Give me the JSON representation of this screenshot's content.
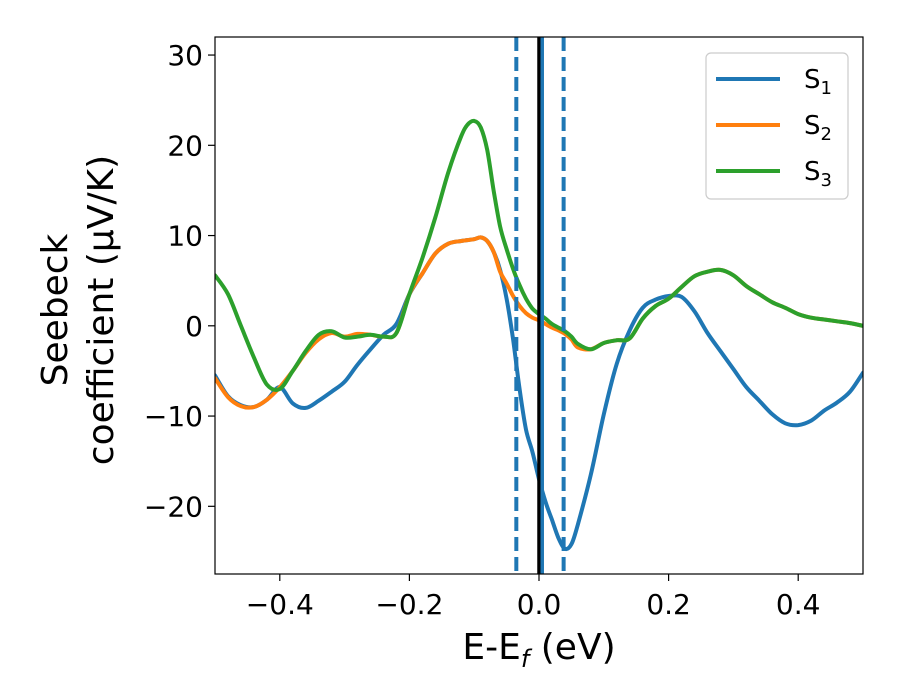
{
  "chart_data": {
    "type": "line",
    "xlabel": "E-E_f (eV)",
    "ylabel_line1": "Seebeck",
    "ylabel_line2": "coefficient  (μV/K)",
    "xlim": [
      -0.5,
      0.5
    ],
    "ylim": [
      -27.5,
      32
    ],
    "xticks": [
      -0.4,
      -0.2,
      0.0,
      0.2,
      0.4
    ],
    "xtick_labels": [
      "−0.4",
      "−0.2",
      "0.0",
      "0.2",
      "0.4"
    ],
    "yticks": [
      -20,
      -10,
      0,
      10,
      20,
      30
    ],
    "ytick_labels": [
      "−20",
      "−10",
      "0",
      "10",
      "20",
      "30"
    ],
    "legend_position": "top-right",
    "vertical_lines": [
      {
        "x": -0.035,
        "style": "dashed",
        "color": "#1f77b4"
      },
      {
        "x": 0.0,
        "style": "solid",
        "color": "#000000"
      },
      {
        "x": 0.005,
        "style": "solid",
        "color": "#1f77b4"
      },
      {
        "x": 0.038,
        "style": "dashed",
        "color": "#1f77b4"
      }
    ],
    "series": [
      {
        "name": "S1",
        "legend_main": "S",
        "legend_sub": "1",
        "color": "#1f77b4",
        "x": [
          -0.5,
          -0.48,
          -0.46,
          -0.44,
          -0.42,
          -0.4,
          -0.38,
          -0.36,
          -0.34,
          -0.32,
          -0.3,
          -0.28,
          -0.26,
          -0.24,
          -0.22,
          -0.2,
          -0.18,
          -0.16,
          -0.14,
          -0.12,
          -0.1,
          -0.09,
          -0.08,
          -0.07,
          -0.06,
          -0.05,
          -0.04,
          -0.03,
          -0.02,
          -0.01,
          0.0,
          0.01,
          0.02,
          0.03,
          0.04,
          0.05,
          0.06,
          0.08,
          0.1,
          0.12,
          0.14,
          0.16,
          0.18,
          0.2,
          0.22,
          0.24,
          0.26,
          0.28,
          0.3,
          0.32,
          0.34,
          0.36,
          0.38,
          0.4,
          0.42,
          0.44,
          0.46,
          0.48,
          0.5
        ],
        "y": [
          -5.5,
          -7.8,
          -8.8,
          -9.0,
          -8.2,
          -6.8,
          -8.6,
          -9.1,
          -8.3,
          -7.3,
          -6.2,
          -4.3,
          -2.6,
          -1.0,
          0.2,
          3.5,
          5.8,
          8.0,
          9.1,
          9.4,
          9.6,
          9.8,
          9.4,
          8.2,
          6.2,
          3.0,
          -1.5,
          -7.0,
          -11.5,
          -14.0,
          -17.0,
          -19.5,
          -21.5,
          -23.5,
          -24.7,
          -24.2,
          -22.0,
          -16.5,
          -9.8,
          -4.2,
          -0.5,
          2.0,
          2.9,
          3.3,
          3.2,
          1.6,
          -0.8,
          -2.8,
          -4.8,
          -6.8,
          -8.3,
          -9.8,
          -10.8,
          -11.0,
          -10.5,
          -9.4,
          -8.5,
          -7.3,
          -5.2
        ]
      },
      {
        "name": "S2",
        "legend_main": "S",
        "legend_sub": "2",
        "color": "#ff7f0e",
        "x": [
          -0.5,
          -0.48,
          -0.46,
          -0.44,
          -0.42,
          -0.4,
          -0.38,
          -0.36,
          -0.34,
          -0.32,
          -0.3,
          -0.28,
          -0.26,
          -0.24,
          -0.22,
          -0.2,
          -0.18,
          -0.16,
          -0.14,
          -0.12,
          -0.1,
          -0.09,
          -0.08,
          -0.07,
          -0.06,
          -0.05,
          -0.04,
          -0.03,
          -0.02,
          -0.01,
          0.0,
          0.01,
          0.02,
          0.03,
          0.04,
          0.05,
          0.06,
          0.08,
          0.1,
          0.12,
          0.14,
          0.16,
          0.18,
          0.2,
          0.22,
          0.24,
          0.26,
          0.28,
          0.3,
          0.32,
          0.34,
          0.36,
          0.38,
          0.4,
          0.42,
          0.44,
          0.46,
          0.48,
          0.5
        ],
        "y": [
          -5.8,
          -7.9,
          -8.9,
          -9.0,
          -8.2,
          -6.8,
          -5.0,
          -3.0,
          -1.5,
          -0.8,
          -1.2,
          -0.9,
          -1.0,
          -1.2,
          -0.8,
          3.5,
          5.8,
          8.0,
          9.1,
          9.4,
          9.6,
          9.8,
          9.4,
          8.2,
          6.0,
          4.7,
          3.3,
          2.2,
          1.4,
          0.9,
          0.6,
          0.2,
          -0.2,
          -0.5,
          -0.9,
          -1.5,
          -2.4,
          -2.6,
          -1.9,
          -1.6,
          -1.4,
          0.8,
          2.2,
          3.0,
          4.3,
          5.5,
          6.0,
          6.2,
          5.6,
          4.4,
          3.5,
          2.6,
          2.0,
          1.3,
          0.9,
          0.7,
          0.5,
          0.3,
          0.0
        ]
      },
      {
        "name": "S3",
        "legend_main": "S",
        "legend_sub": "3",
        "color": "#2ca02c",
        "x": [
          -0.5,
          -0.48,
          -0.46,
          -0.44,
          -0.42,
          -0.4,
          -0.38,
          -0.36,
          -0.34,
          -0.32,
          -0.3,
          -0.28,
          -0.26,
          -0.24,
          -0.22,
          -0.2,
          -0.18,
          -0.16,
          -0.14,
          -0.12,
          -0.11,
          -0.1,
          -0.09,
          -0.08,
          -0.07,
          -0.06,
          -0.05,
          -0.04,
          -0.03,
          -0.02,
          -0.01,
          0.0,
          0.01,
          0.02,
          0.03,
          0.04,
          0.05,
          0.06,
          0.08,
          0.1,
          0.12,
          0.14,
          0.16,
          0.18,
          0.2,
          0.22,
          0.24,
          0.26,
          0.28,
          0.3,
          0.32,
          0.34,
          0.36,
          0.38,
          0.4,
          0.42,
          0.44,
          0.46,
          0.48,
          0.5
        ],
        "y": [
          5.6,
          3.5,
          0.0,
          -3.5,
          -6.5,
          -7.0,
          -5.0,
          -2.8,
          -1.0,
          -0.6,
          -1.3,
          -1.2,
          -1.0,
          -1.2,
          -0.8,
          3.5,
          7.5,
          12.0,
          17.0,
          21.0,
          22.3,
          22.7,
          22.0,
          19.5,
          15.0,
          11.0,
          8.5,
          6.3,
          4.5,
          3.0,
          1.9,
          1.3,
          0.8,
          0.2,
          -0.2,
          -0.6,
          -1.2,
          -2.0,
          -2.6,
          -1.9,
          -1.6,
          -1.4,
          0.8,
          2.2,
          3.0,
          4.3,
          5.5,
          6.0,
          6.2,
          5.6,
          4.4,
          3.5,
          2.6,
          2.0,
          1.3,
          0.9,
          0.7,
          0.5,
          0.3,
          0.0
        ]
      }
    ]
  }
}
